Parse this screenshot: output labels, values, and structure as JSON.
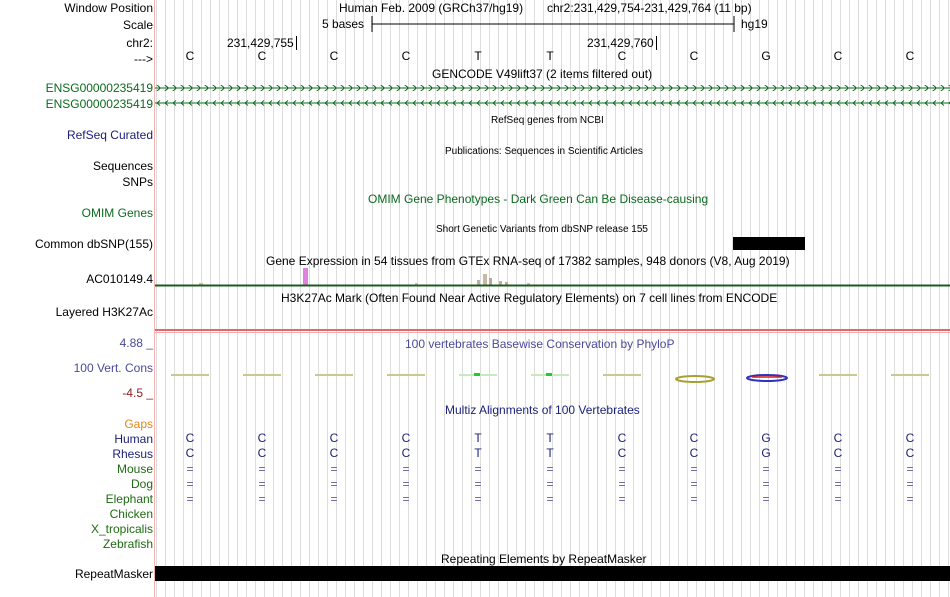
{
  "labels": {
    "window_position": "Window Position",
    "scale": "Scale",
    "chr": "chr2:",
    "arrow": "--->",
    "ensg1": "ENSG00000235419",
    "ensg2": "ENSG00000235419",
    "refseq": "RefSeq Curated",
    "sequences": "Sequences",
    "snps": "SNPs",
    "omim": "OMIM Genes",
    "dbsnp": "Common dbSNP(155)",
    "gtex_gene": "AC010149.4",
    "h3k27ac": "Layered H3K27Ac",
    "cons_max": "4.88 _",
    "cons_name": "100 Vert. Cons",
    "cons_min": "-4.5 _",
    "gaps": "Gaps",
    "species": [
      "Human",
      "Rhesus",
      "Mouse",
      "Dog",
      "Elephant",
      "Chicken",
      "X_tropicalis",
      "Zebrafish"
    ],
    "repeatmasker": "RepeatMasker"
  },
  "header": {
    "assembly": "Human Feb. 2009 (GRCh37/hg19)",
    "position": "chr2:231,429,754-231,429,764 (11 bp)",
    "scale_text": "5 bases",
    "scale_db": "hg19",
    "coord1": "231,429,755",
    "coord2": "231,429,760"
  },
  "bases": [
    "C",
    "C",
    "C",
    "C",
    "T",
    "T",
    "C",
    "C",
    "G",
    "C",
    "C"
  ],
  "rhesus_bases": [
    "C",
    "C",
    "C",
    "C",
    "T",
    "T",
    "C",
    "C",
    "G",
    "C",
    "C"
  ],
  "eq_symbol": "=",
  "tracks": {
    "gencode": "GENCODE V49lift37 (2 items filtered out)",
    "refseq_title": "RefSeq genes from NCBI",
    "publications": "Publications: Sequences in Scientific Articles",
    "omim_title": "OMIM Gene Phenotypes - Dark Green Can Be Disease-causing",
    "dbsnp_title": "Short Genetic Variants from dbSNP release 155",
    "gtex_title": "Gene Expression in 54 tissues from GTEx RNA-seq of 17382 samples, 948 donors (V8, Aug 2019)",
    "h3k27ac_title": "H3K27Ac Mark (Often Found Near Active Regulatory Elements) on 7 cell lines from ENCODE",
    "phylop_title": "100 vertebrates Basewise Conservation by PhyloP",
    "multiz_title": "Multiz Alignments of 100 Vertebrates",
    "rmsk_title": "Repeating Elements by RepeatMasker"
  },
  "colors": {
    "gene_green": "#0b6a1e",
    "navy": "#1a1f7a",
    "gaps_orange": "#e0891b",
    "grid": "#dcdcdc",
    "divider": "#f3b3b3"
  }
}
